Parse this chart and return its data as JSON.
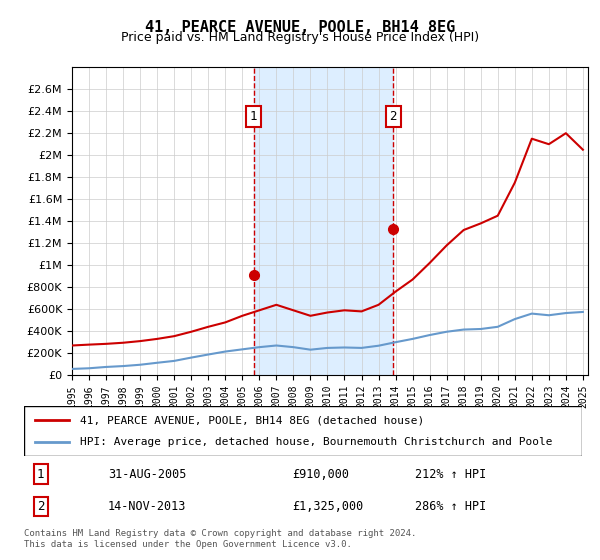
{
  "title": "41, PEARCE AVENUE, POOLE, BH14 8EG",
  "subtitle": "Price paid vs. HM Land Registry's House Price Index (HPI)",
  "legend_line1": "41, PEARCE AVENUE, POOLE, BH14 8EG (detached house)",
  "legend_line2": "HPI: Average price, detached house, Bournemouth Christchurch and Poole",
  "footnote": "Contains HM Land Registry data © Crown copyright and database right 2024.\nThis data is licensed under the Open Government Licence v3.0.",
  "transaction1_label": "1",
  "transaction1_date": "31-AUG-2005",
  "transaction1_price": "£910,000",
  "transaction1_hpi": "212% ↑ HPI",
  "transaction2_label": "2",
  "transaction2_date": "14-NOV-2013",
  "transaction2_price": "£1,325,000",
  "transaction2_hpi": "286% ↑ HPI",
  "red_color": "#cc0000",
  "blue_color": "#6699cc",
  "shaded_color": "#ddeeff",
  "grid_color": "#cccccc",
  "background_color": "#ffffff",
  "ylim_max": 2800000,
  "ylim_min": 0,
  "years": [
    1995,
    1996,
    1997,
    1998,
    1999,
    2000,
    2001,
    2002,
    2003,
    2004,
    2005,
    2006,
    2007,
    2008,
    2009,
    2010,
    2011,
    2012,
    2013,
    2014,
    2015,
    2016,
    2017,
    2018,
    2019,
    2020,
    2021,
    2022,
    2023,
    2024,
    2025
  ],
  "hpi_values": [
    57000,
    63000,
    75000,
    83000,
    95000,
    113000,
    130000,
    160000,
    188000,
    215000,
    235000,
    255000,
    270000,
    255000,
    232000,
    248000,
    252000,
    248000,
    268000,
    300000,
    330000,
    365000,
    395000,
    415000,
    420000,
    440000,
    510000,
    560000,
    545000,
    565000,
    575000
  ],
  "price_values": [
    270000,
    278000,
    285000,
    295000,
    310000,
    330000,
    355000,
    395000,
    440000,
    480000,
    540000,
    590000,
    640000,
    590000,
    540000,
    570000,
    590000,
    580000,
    640000,
    760000,
    870000,
    1020000,
    1180000,
    1320000,
    1380000,
    1450000,
    1750000,
    2150000,
    2100000,
    2200000,
    2050000
  ],
  "transaction1_year": 2005.67,
  "transaction2_year": 2013.87,
  "transaction1_price_val": 910000,
  "transaction2_price_val": 1325000
}
